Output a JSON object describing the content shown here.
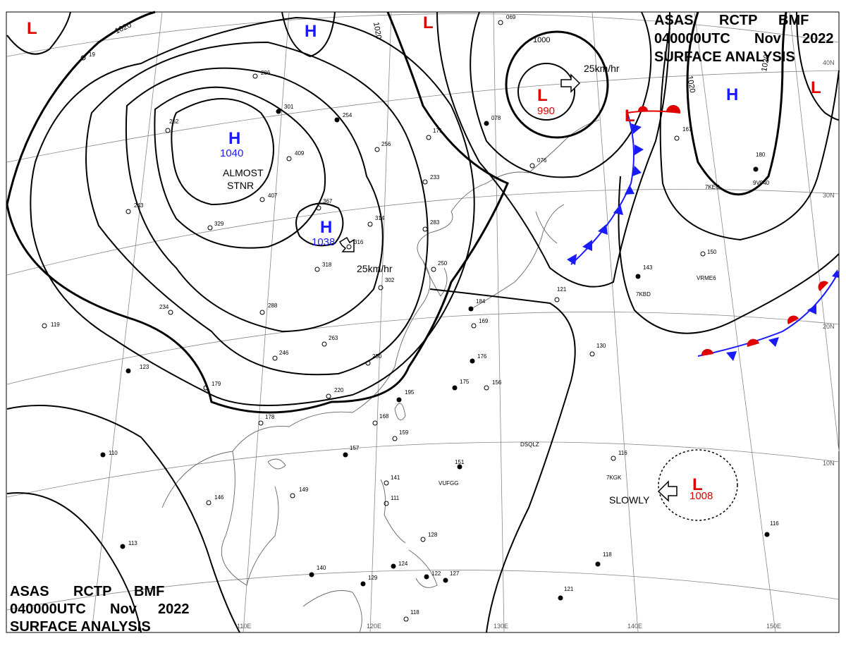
{
  "header_top_right": {
    "line1": [
      "ASAS",
      "RCTP",
      "BMF"
    ],
    "line2": [
      "040000UTC",
      "Nov",
      "2022"
    ],
    "line3": "SURFACE ANALYSIS"
  },
  "header_bottom_left": {
    "line1": [
      "ASAS",
      "RCTP",
      "BMF"
    ],
    "line2": [
      "040000UTC",
      "Nov",
      "2022"
    ],
    "line3": "SURFACE ANALYSIS"
  },
  "pressure_systems": [
    {
      "id": "h-mongolia",
      "letter": "H",
      "value": "1040",
      "note": "ALMOST\nSTNR",
      "color": "#1a1aff"
    },
    {
      "id": "h-north-china",
      "letter": "H",
      "value": "1038",
      "motion": "25km/hr",
      "color": "#1a1aff"
    },
    {
      "id": "h-north",
      "letter": "H",
      "value": "",
      "color": "#1a1aff"
    },
    {
      "id": "h-east",
      "letter": "H",
      "value": "",
      "color": "#1a1aff"
    },
    {
      "id": "l-kamchatka",
      "letter": "L",
      "value": "990",
      "motion": "25km/hr",
      "color": "#e00000"
    },
    {
      "id": "l-front",
      "letter": "L",
      "value": "",
      "color": "#e00000"
    },
    {
      "id": "l-northwest",
      "letter": "L",
      "value": "",
      "color": "#e00000"
    },
    {
      "id": "l-north",
      "letter": "L",
      "value": "",
      "color": "#e00000"
    },
    {
      "id": "l-northeast",
      "letter": "L",
      "value": "",
      "color": "#e00000"
    },
    {
      "id": "l-tropical",
      "letter": "L",
      "value": "1008",
      "motion": "SLOWLY",
      "color": "#e00000"
    }
  ],
  "isobar_labels": [
    "1020",
    "1020",
    "1000",
    "1020",
    "1020"
  ],
  "latitude_labels": [
    "40N",
    "30N",
    "20N",
    "10N"
  ],
  "longitude_labels": [
    "110E",
    "120E",
    "130E",
    "140E",
    "150E"
  ],
  "station_plots": [
    "19",
    "286",
    "301",
    "254",
    "262",
    "409",
    "407",
    "329",
    "243",
    "367",
    "316",
    "318",
    "314",
    "283",
    "233",
    "256",
    "171",
    "302",
    "250",
    "234",
    "288",
    "263",
    "246",
    "250",
    "220",
    "179",
    "178",
    "195",
    "168",
    "159",
    "157",
    "175",
    "156",
    "176",
    "169",
    "184",
    "123",
    "119",
    "110",
    "149",
    "146",
    "141",
    "111",
    "128",
    "124",
    "122",
    "127",
    "140",
    "129",
    "118",
    "113",
    "151",
    "116",
    "118",
    "121",
    "130",
    "143",
    "150",
    "180",
    "167",
    "076",
    "078",
    "069",
    "121",
    "116"
  ],
  "station_ids": [
    "7KEG",
    "9V940",
    "7KBD",
    "DSQLZ",
    "VUFGG",
    "7KGK",
    "VRME6"
  ],
  "colors": {
    "high": "#1a1aff",
    "low": "#e00000",
    "isobar": "#000000",
    "grid": "#888888",
    "coast": "#666666",
    "cold_front": "#1a1aff",
    "warm_front": "#e00000"
  }
}
